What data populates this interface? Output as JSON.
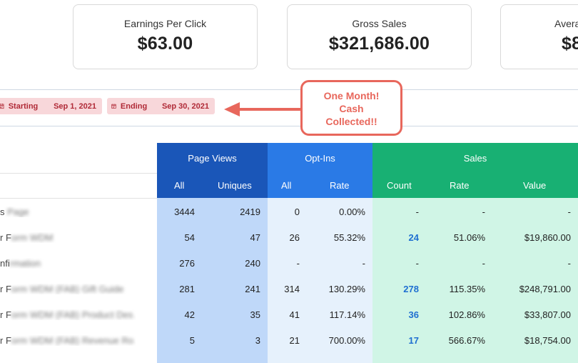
{
  "kpis": {
    "epc": {
      "label": "Earnings Per Click",
      "value": "$63.00"
    },
    "gross": {
      "label": "Gross Sales",
      "value": "$321,686.00"
    },
    "avg": {
      "label": "Avera",
      "value": "$8"
    }
  },
  "filter": {
    "start_label": "Starting",
    "start_date": "Sep 1, 2021",
    "end_label": "Ending",
    "end_date": "Sep 30, 2021"
  },
  "annotation": {
    "line1": "One Month!",
    "line2": "Cash",
    "line3": "Collected!!"
  },
  "table": {
    "groups": {
      "page_views": "Page Views",
      "opt_ins": "Opt-Ins",
      "sales": "Sales"
    },
    "sub": {
      "pv_all": "All",
      "pv_uniques": "Uniques",
      "oi_all": "All",
      "oi_rate": "Rate",
      "sa_count": "Count",
      "sa_rate": "Rate",
      "sa_value": "Value"
    },
    "rows": [
      {
        "name_a": "s ",
        "name_b": "Page",
        "pv_all": "3444",
        "pv_uniques": "2419",
        "oi_all": "0",
        "oi_rate": "0.00%",
        "sa_count": "-",
        "sa_rate": "-",
        "sa_value": "-"
      },
      {
        "name_a": "r F",
        "name_b": "orm WDM",
        "pv_all": "54",
        "pv_uniques": "47",
        "oi_all": "26",
        "oi_rate": "55.32%",
        "sa_count": "24",
        "sa_rate": "51.06%",
        "sa_value": "$19,860.00"
      },
      {
        "name_a": "nfi",
        "name_b": "rmation",
        "pv_all": "276",
        "pv_uniques": "240",
        "oi_all": "-",
        "oi_rate": "-",
        "sa_count": "-",
        "sa_rate": "-",
        "sa_value": "-"
      },
      {
        "name_a": "r F",
        "name_b": "orm WDM (FAB) Gift Guide",
        "pv_all": "281",
        "pv_uniques": "241",
        "oi_all": "314",
        "oi_rate": "130.29%",
        "sa_count": "278",
        "sa_rate": "115.35%",
        "sa_value": "$248,791.00"
      },
      {
        "name_a": "r F",
        "name_b": "orm WDM (FAB) Product Des ..",
        "pv_all": "42",
        "pv_uniques": "35",
        "oi_all": "41",
        "oi_rate": "117.14%",
        "sa_count": "36",
        "sa_rate": "102.86%",
        "sa_value": "$33,807.00"
      },
      {
        "name_a": "r F",
        "name_b": "orm WDM (FAB) Revenue Ro ..",
        "pv_all": "5",
        "pv_uniques": "3",
        "oi_all": "21",
        "oi_rate": "700.00%",
        "sa_count": "17",
        "sa_rate": "566.67%",
        "sa_value": "$18,754.00"
      }
    ]
  },
  "colors": {
    "page_views_header": "#1a56b8",
    "opt_ins_header": "#2a7ae6",
    "sales_header": "#18b073",
    "annotation": "#e8675c",
    "date_chip_bg": "#f8d7da",
    "date_chip_text": "#b02a37",
    "count_link": "#1f6fd1"
  },
  "icons": {
    "date_chip": "calendar-icon",
    "annotation_pointer": "arrow-left-icon"
  }
}
